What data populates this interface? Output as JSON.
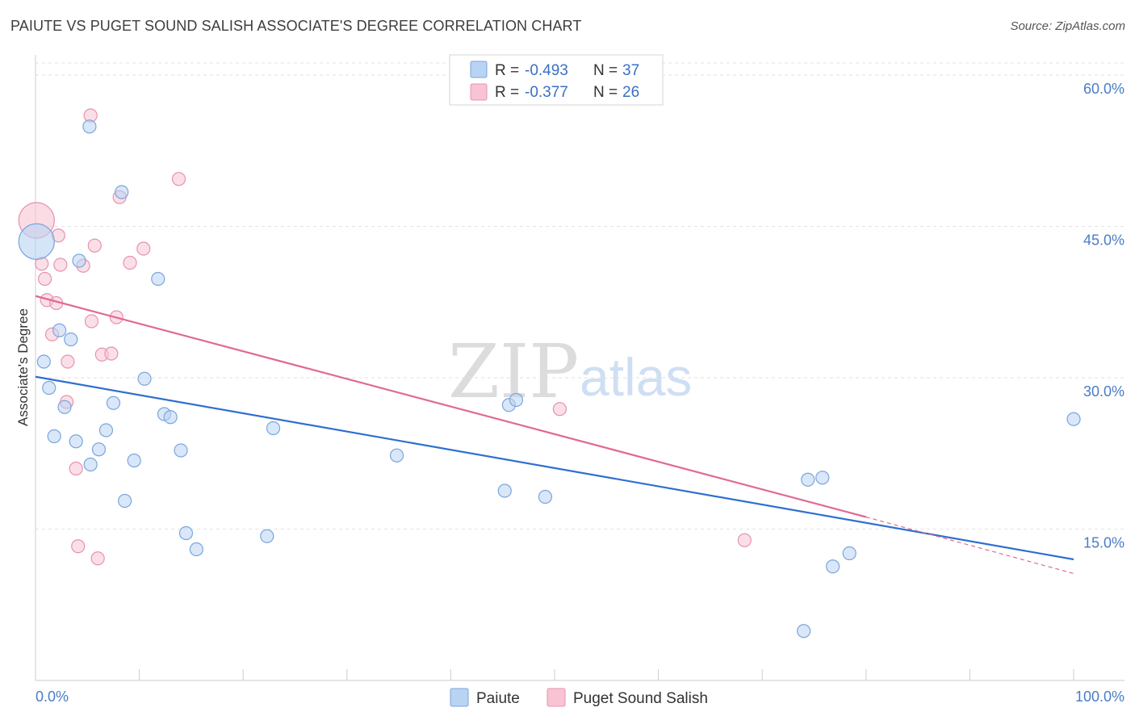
{
  "header": {
    "title": "PAIUTE VS PUGET SOUND SALISH ASSOCIATE'S DEGREE CORRELATION CHART",
    "source": "Source: ZipAtlas.com"
  },
  "watermark": {
    "zip": "ZIP",
    "atlas": "atlas"
  },
  "colors": {
    "paiute_fill": "#b9d3f3",
    "paiute_stroke": "#7aa6dc",
    "paiute_line": "#2f6fcf",
    "salish_fill": "#f8c4d4",
    "salish_stroke": "#e793ae",
    "salish_line": "#e06a92",
    "grid": "#e2e2e2",
    "axis_label": "#4a7cc7"
  },
  "legend": {
    "rows": [
      {
        "r_label": "R =",
        "r_value": "-0.493",
        "n_label": "N =",
        "n_value": "37"
      },
      {
        "r_label": "R =",
        "r_value": "-0.377",
        "n_label": "N =",
        "n_value": "26"
      }
    ]
  },
  "chart_data": {
    "type": "scatter",
    "title": "PAIUTE VS PUGET SOUND SALISH ASSOCIATE'S DEGREE CORRELATION CHART",
    "xlabel": "",
    "ylabel": "Associate's Degree",
    "xlim": [
      0,
      100
    ],
    "ylim": [
      0,
      62
    ],
    "x_tick_labels": {
      "min": "0.0%",
      "max": "100.0%"
    },
    "y_ticks": [
      {
        "value": 15,
        "label": "15.0%"
      },
      {
        "value": 30,
        "label": "30.0%"
      },
      {
        "value": 45,
        "label": "45.0%"
      },
      {
        "value": 60,
        "label": "60.0%"
      }
    ],
    "grid": true,
    "legend_position": "top-center",
    "series": [
      {
        "name": "Paiute",
        "r": -0.493,
        "n": 37,
        "trend": {
          "x0": 0,
          "y0": 30.1,
          "x1": 100,
          "y1": 12.0
        },
        "points": [
          {
            "x": 0.1,
            "y": 43.5,
            "big": true
          },
          {
            "x": 0.8,
            "y": 31.6
          },
          {
            "x": 1.3,
            "y": 29.0
          },
          {
            "x": 1.8,
            "y": 24.2
          },
          {
            "x": 2.3,
            "y": 34.7
          },
          {
            "x": 2.8,
            "y": 27.1
          },
          {
            "x": 3.4,
            "y": 33.8
          },
          {
            "x": 3.9,
            "y": 23.7
          },
          {
            "x": 4.2,
            "y": 41.6
          },
          {
            "x": 5.2,
            "y": 54.9
          },
          {
            "x": 5.3,
            "y": 21.4
          },
          {
            "x": 6.1,
            "y": 22.9
          },
          {
            "x": 6.8,
            "y": 24.8
          },
          {
            "x": 7.5,
            "y": 27.5
          },
          {
            "x": 8.3,
            "y": 48.4
          },
          {
            "x": 8.6,
            "y": 17.8
          },
          {
            "x": 9.5,
            "y": 21.8
          },
          {
            "x": 10.5,
            "y": 29.9
          },
          {
            "x": 11.8,
            "y": 39.8
          },
          {
            "x": 12.4,
            "y": 26.4
          },
          {
            "x": 13.0,
            "y": 26.1
          },
          {
            "x": 14.0,
            "y": 22.8
          },
          {
            "x": 14.5,
            "y": 14.6
          },
          {
            "x": 15.5,
            "y": 13.0
          },
          {
            "x": 22.3,
            "y": 14.3
          },
          {
            "x": 22.9,
            "y": 25.0
          },
          {
            "x": 34.8,
            "y": 22.3
          },
          {
            "x": 45.2,
            "y": 18.8
          },
          {
            "x": 45.6,
            "y": 27.3
          },
          {
            "x": 46.3,
            "y": 27.8
          },
          {
            "x": 49.1,
            "y": 18.2
          },
          {
            "x": 74.0,
            "y": 4.9
          },
          {
            "x": 74.4,
            "y": 19.9
          },
          {
            "x": 75.8,
            "y": 20.1
          },
          {
            "x": 76.8,
            "y": 11.3
          },
          {
            "x": 78.4,
            "y": 12.6
          },
          {
            "x": 100.0,
            "y": 25.9
          }
        ]
      },
      {
        "name": "Puget Sound Salish",
        "r": -0.377,
        "n": 26,
        "trend": {
          "x0": 0,
          "y0": 38.1,
          "x1": 80.0,
          "y1": 16.2,
          "dash_x1": 100,
          "dash_y1": 10.6
        },
        "points": [
          {
            "x": 0.1,
            "y": 45.6,
            "big": true
          },
          {
            "x": 0.6,
            "y": 41.3
          },
          {
            "x": 0.9,
            "y": 39.8
          },
          {
            "x": 1.1,
            "y": 37.7
          },
          {
            "x": 1.6,
            "y": 34.3
          },
          {
            "x": 2.0,
            "y": 37.4
          },
          {
            "x": 2.2,
            "y": 44.1
          },
          {
            "x": 2.4,
            "y": 41.2
          },
          {
            "x": 3.0,
            "y": 27.6
          },
          {
            "x": 3.1,
            "y": 31.6
          },
          {
            "x": 3.9,
            "y": 21.0
          },
          {
            "x": 4.1,
            "y": 13.3
          },
          {
            "x": 4.6,
            "y": 41.1
          },
          {
            "x": 5.3,
            "y": 56.0
          },
          {
            "x": 5.4,
            "y": 35.6
          },
          {
            "x": 5.7,
            "y": 43.1
          },
          {
            "x": 6.0,
            "y": 12.1
          },
          {
            "x": 6.4,
            "y": 32.3
          },
          {
            "x": 7.3,
            "y": 32.4
          },
          {
            "x": 7.8,
            "y": 36.0
          },
          {
            "x": 8.1,
            "y": 47.9
          },
          {
            "x": 9.1,
            "y": 41.4
          },
          {
            "x": 10.4,
            "y": 42.8
          },
          {
            "x": 13.8,
            "y": 49.7
          },
          {
            "x": 50.5,
            "y": 26.9
          },
          {
            "x": 68.3,
            "y": 13.9
          }
        ]
      }
    ]
  }
}
